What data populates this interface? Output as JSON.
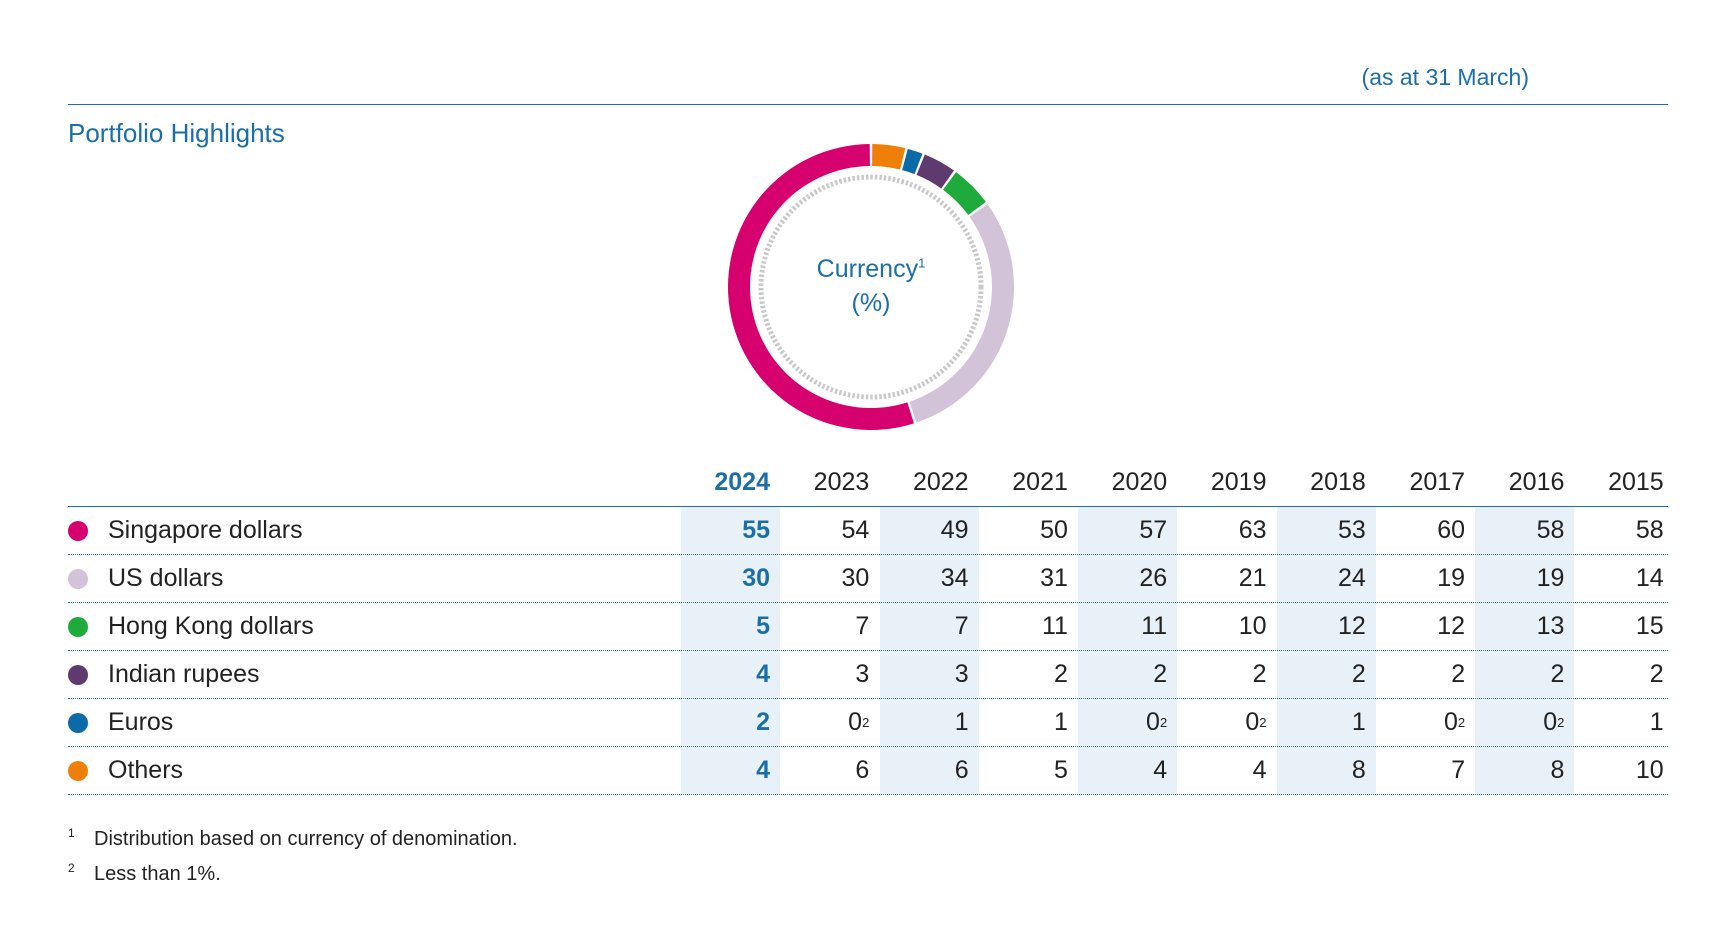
{
  "header": {
    "as_at": "(as at 31 March)",
    "section_title": "Portfolio Highlights"
  },
  "donut": {
    "label_line1": "Currency",
    "label_sup": "1",
    "label_line2": "(%)"
  },
  "chart_data": {
    "type": "table",
    "title": "Currency (%)",
    "columns": [
      "2024",
      "2023",
      "2022",
      "2021",
      "2020",
      "2019",
      "2018",
      "2017",
      "2016",
      "2015"
    ],
    "highlight_column": "2024",
    "rows": [
      {
        "label": "Singapore dollars",
        "color": "#d6006e",
        "values": [
          "55",
          "54",
          "49",
          "50",
          "57",
          "63",
          "53",
          "60",
          "58",
          "58"
        ]
      },
      {
        "label": "US dollars",
        "color": "#d2c3d8",
        "values": [
          "30",
          "30",
          "34",
          "31",
          "26",
          "21",
          "24",
          "19",
          "19",
          "14"
        ]
      },
      {
        "label": "Hong Kong dollars",
        "color": "#1fab3c",
        "values": [
          "5",
          "7",
          "7",
          "11",
          "11",
          "10",
          "12",
          "12",
          "13",
          "15"
        ]
      },
      {
        "label": "Indian rupees",
        "color": "#5e3a6e",
        "values": [
          "4",
          "3",
          "3",
          "2",
          "2",
          "2",
          "2",
          "2",
          "2",
          "2"
        ]
      },
      {
        "label": "Euros",
        "color": "#0d6aa8",
        "values": [
          "2",
          "0",
          "1",
          "1",
          "0",
          "0",
          "1",
          "0",
          "0",
          "1"
        ],
        "superscripts": [
          "",
          "2",
          "",
          "",
          "2",
          "2",
          "",
          "2",
          "2",
          ""
        ]
      },
      {
        "label": "Others",
        "color": "#f07f09",
        "values": [
          "4",
          "6",
          "6",
          "5",
          "4",
          "4",
          "8",
          "7",
          "8",
          "10"
        ]
      }
    ],
    "donut_year": "2024"
  },
  "footnotes": [
    {
      "mark": "1",
      "text": "Distribution based on currency of denomination."
    },
    {
      "mark": "2",
      "text": "Less than 1%."
    }
  ]
}
